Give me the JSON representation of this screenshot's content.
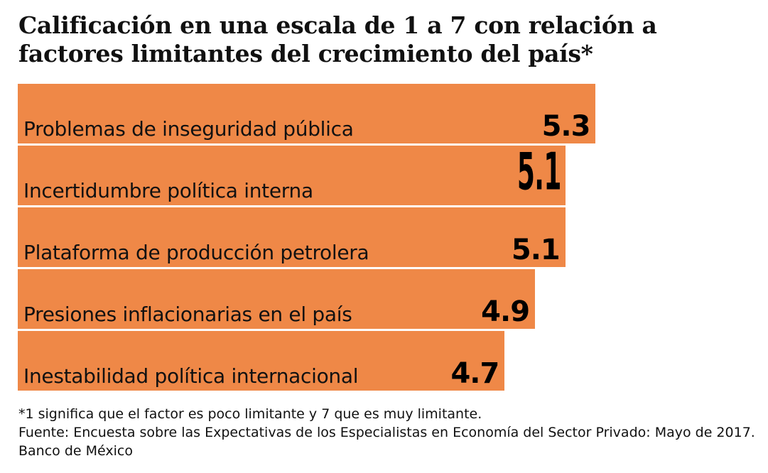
{
  "chart_data": {
    "type": "bar",
    "orientation": "horizontal",
    "title": "Calificación en una escala de 1 a 7 con relación a factores limitantes del crecimiento del país*",
    "categories": [
      "Problemas de inseguridad pública",
      "Incertidumbre política interna",
      "Plataforma de producción petrolera",
      "Presiones inflacionarias en el país",
      "Inestabilidad política internacional"
    ],
    "values": [
      5.3,
      5.1,
      5.1,
      4.9,
      4.7
    ],
    "value_labels": [
      "5.3",
      "5.1",
      "5.1",
      "4.9",
      "4.7"
    ],
    "bar_color": "#EF8847",
    "grid": false,
    "legend": "none"
  },
  "footnote": "*1 significa que el factor es poco limitante y 7 que es muy limitante.",
  "source": "Fuente: Encuesta sobre las Expectativas de los Especialistas en Economía del Sector Privado: Mayo de 2017. Banco de México"
}
